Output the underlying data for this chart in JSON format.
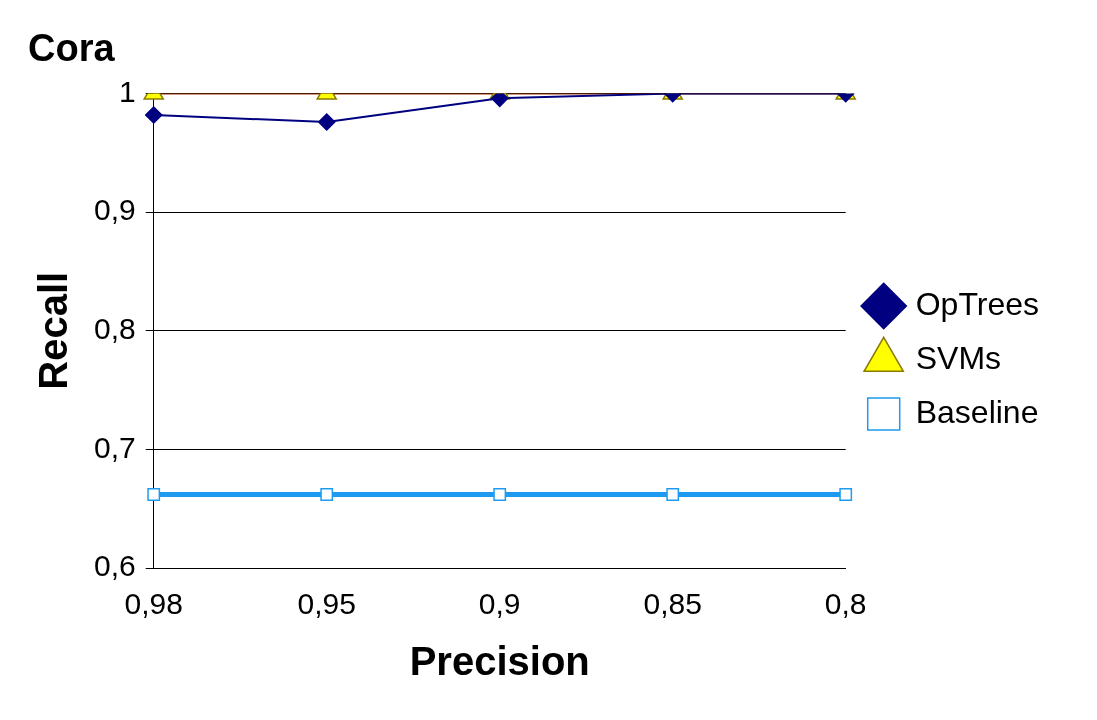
{
  "chart_data": {
    "type": "line",
    "title": "Cora",
    "xlabel": "Precision",
    "ylabel": "Recall",
    "categories": [
      "0,98",
      "0,95",
      "0,9",
      "0,85",
      "0,8"
    ],
    "series": [
      {
        "name": "OpTrees",
        "color": "#000080",
        "marker": "diamond",
        "values": [
          0.982,
          0.976,
          0.996,
          1.0,
          1.0
        ]
      },
      {
        "name": "SVMs",
        "color": "#993300",
        "marker": "triangle",
        "values": [
          1.0,
          1.0,
          1.0,
          1.0,
          1.0
        ]
      },
      {
        "name": "Baseline",
        "color": "#1e9bf0",
        "marker": "square",
        "values": [
          0.662,
          0.662,
          0.662,
          0.662,
          0.662
        ]
      }
    ],
    "ylim": [
      0.6,
      1.0
    ],
    "yticks": [
      {
        "value": 0.6,
        "label": "0,6"
      },
      {
        "value": 0.7,
        "label": "0,7"
      },
      {
        "value": 0.8,
        "label": "0,8"
      },
      {
        "value": 0.9,
        "label": "0,9"
      },
      {
        "value": 1.0,
        "label": "1"
      }
    ],
    "grid": "y",
    "legend": "right"
  }
}
